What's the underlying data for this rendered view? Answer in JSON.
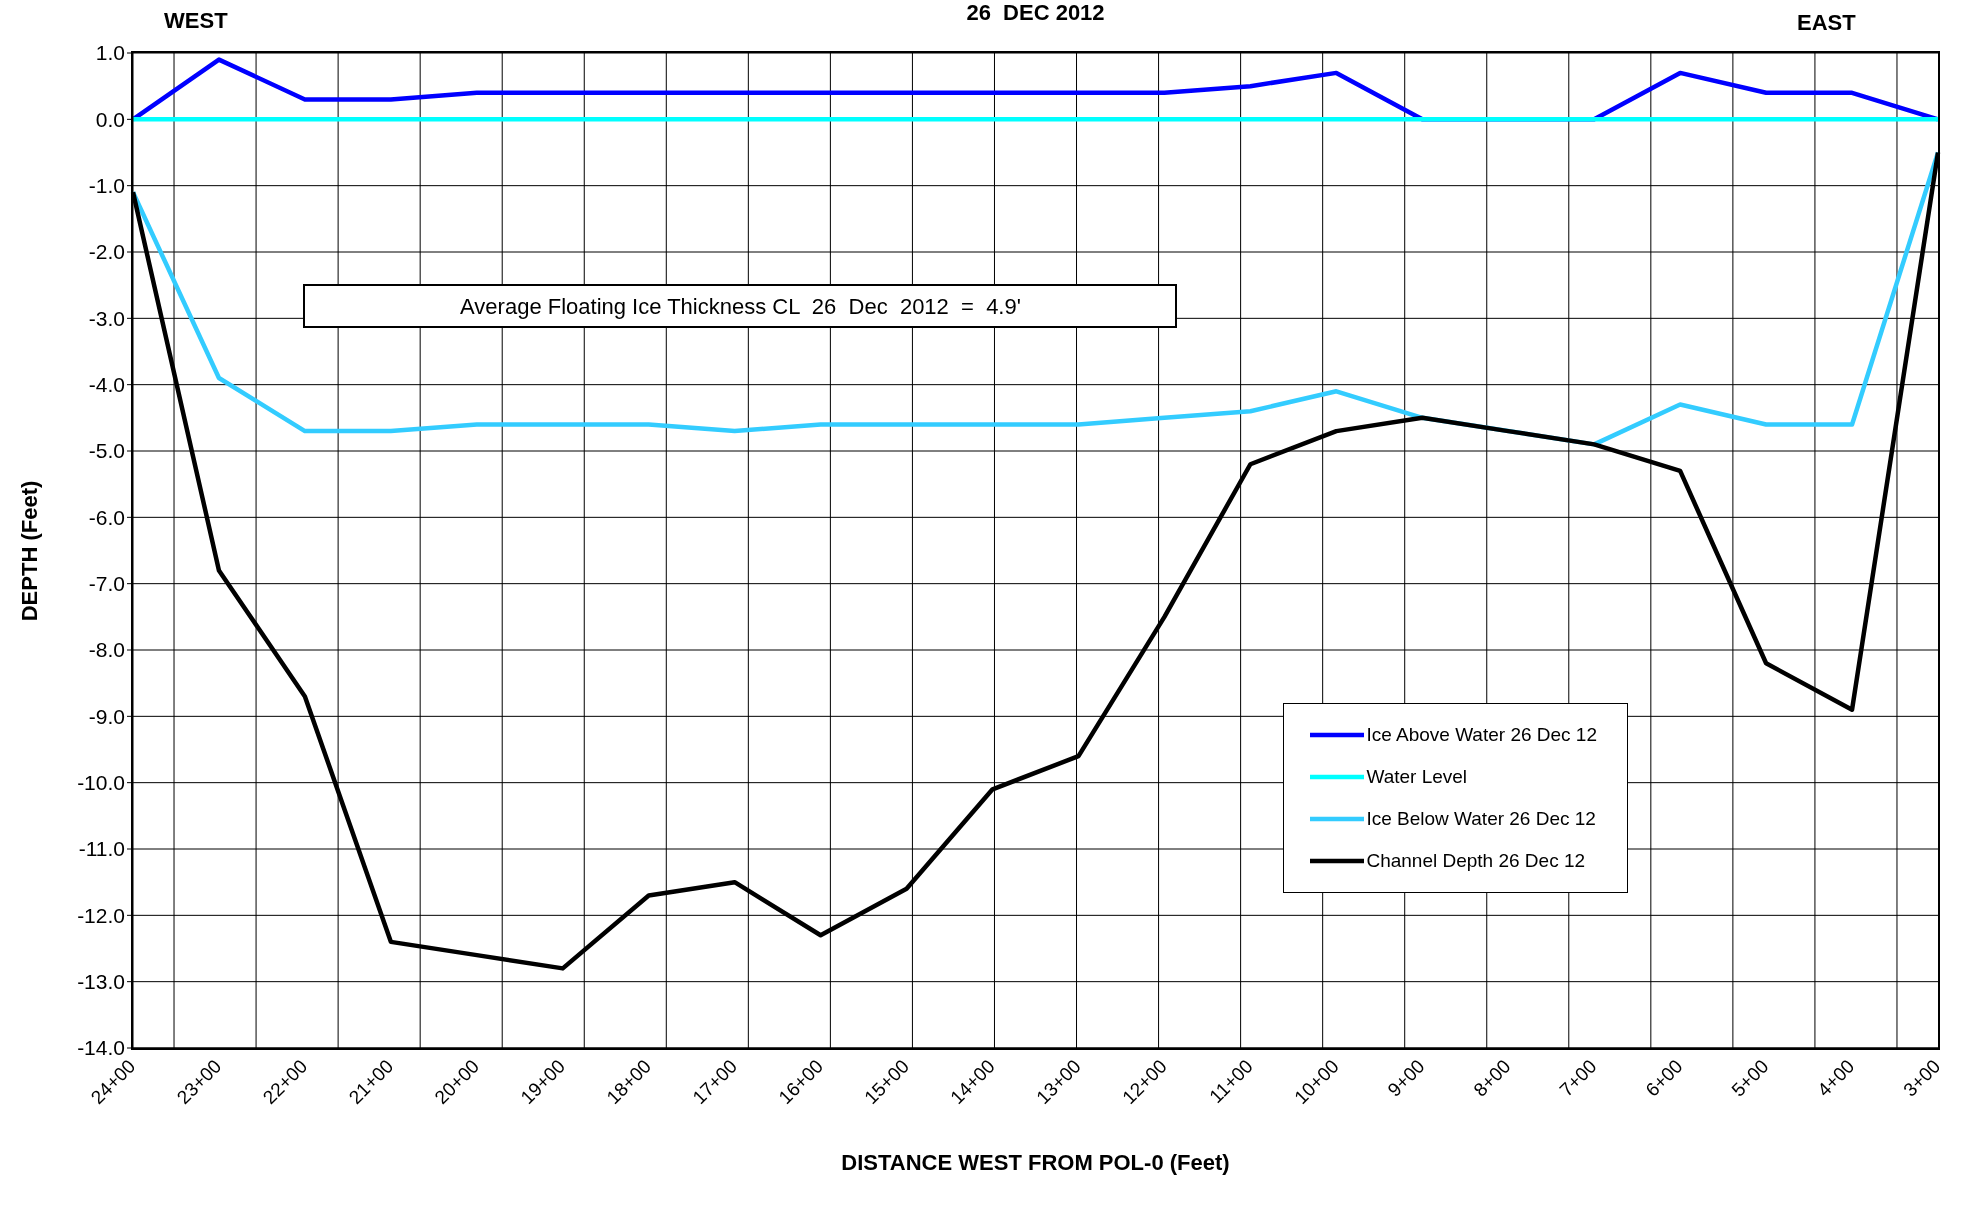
{
  "chart_data": {
    "type": "line",
    "title": "26  DEC 2012",
    "xlabel": "DISTANCE WEST FROM POL-0 (Feet)",
    "ylabel": "DEPTH (Feet)",
    "annotations": [
      "WEST",
      "EAST",
      "Average Floating Ice Thickness CL  26  Dec  2012  =  4.9'"
    ],
    "categories": [
      "24+00",
      "23+00",
      "22+00",
      "21+00",
      "20+00",
      "19+00",
      "18+00",
      "17+00",
      "16+00",
      "15+00",
      "14+00",
      "13+00",
      "12+00",
      "11+00",
      "10+00",
      "9+00",
      "8+00",
      "7+00",
      "6+00",
      "5+00",
      "4+00",
      "3+00"
    ],
    "series": [
      {
        "name": "Ice Above Water 26 Dec 12",
        "color": "#0000ff",
        "values": [
          0,
          0.9,
          0.3,
          0.3,
          0.4,
          0.4,
          0.4,
          0.4,
          0.4,
          0.4,
          0.4,
          0.4,
          0.4,
          0.5,
          0.7,
          0,
          null,
          0,
          0.7,
          0.4,
          0.4,
          0
        ]
      },
      {
        "name": "Water Level",
        "color": "#00ffff",
        "values": [
          0,
          0,
          0,
          0,
          0,
          0,
          0,
          0,
          0,
          0,
          0,
          0,
          0,
          0,
          0,
          0,
          0,
          0,
          0,
          0,
          0,
          0
        ]
      },
      {
        "name": "Ice Below Water 26 Dec 12",
        "color": "#33ccff",
        "values": [
          -1.1,
          -3.9,
          -4.7,
          -4.7,
          -4.6,
          -4.6,
          -4.6,
          -4.7,
          -4.6,
          -4.6,
          -4.6,
          -4.6,
          -4.5,
          -4.4,
          -4.1,
          -4.5,
          null,
          -4.9,
          -4.3,
          -4.6,
          -4.6,
          -0.5
        ]
      },
      {
        "name": "Channel Depth 26 Dec 12",
        "color": "#000000",
        "values": [
          -1.1,
          -6.8,
          -8.7,
          -12.4,
          -12.6,
          -12.8,
          -11.7,
          -11.5,
          -12.3,
          -11.6,
          -10.1,
          -9.6,
          -7.5,
          -5.2,
          -4.7,
          -4.5,
          -4.7,
          -4.9,
          -5.3,
          -8.2,
          -8.9,
          -0.5
        ]
      }
    ],
    "ylim": [
      -14,
      1
    ],
    "yticks": [
      {
        "value": 1,
        "label": "1.0"
      },
      {
        "value": 0,
        "label": "0.0"
      },
      {
        "value": -1,
        "label": "-1.0"
      },
      {
        "value": -2,
        "label": "-2.0"
      },
      {
        "value": -3,
        "label": "-3.0"
      },
      {
        "value": -4,
        "label": "-4.0"
      },
      {
        "value": -5,
        "label": "-5.0"
      },
      {
        "value": -6,
        "label": "-6.0"
      },
      {
        "value": -7,
        "label": "-7.0"
      },
      {
        "value": -8,
        "label": "-8.0"
      },
      {
        "value": -9,
        "label": "-9.0"
      },
      {
        "value": -10,
        "label": "-10.0"
      },
      {
        "value": -11,
        "label": "-11.0"
      },
      {
        "value": -12,
        "label": "-12.0"
      },
      {
        "value": -13,
        "label": "-13.0"
      },
      {
        "value": -14,
        "label": "-14.0"
      }
    ],
    "grid": true,
    "legend": "right",
    "marker": "none",
    "line_style": "solid"
  }
}
